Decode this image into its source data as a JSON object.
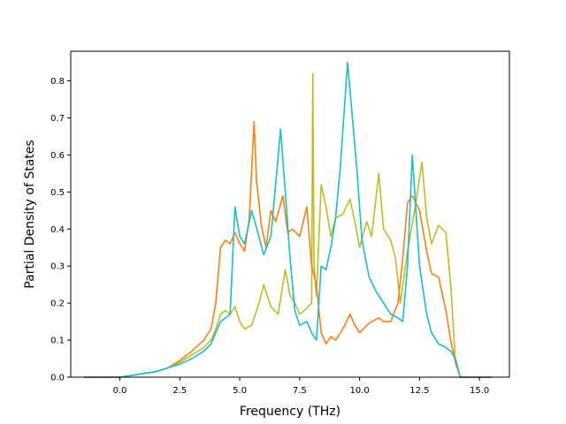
{
  "chart_data": {
    "type": "line",
    "title": "",
    "xlabel": "Frequency (THz)",
    "ylabel": "Partial Density of States",
    "xlim": [
      -2.05,
      16.25
    ],
    "ylim": [
      0.0,
      0.88
    ],
    "xticks": [
      0.0,
      2.5,
      5.0,
      7.5,
      10.0,
      12.5,
      15.0
    ],
    "xtick_labels": [
      "0.0",
      "2.5",
      "5.0",
      "7.5",
      "10.0",
      "12.5",
      "15.0"
    ],
    "yticks": [
      0.0,
      0.1,
      0.2,
      0.3,
      0.4,
      0.5,
      0.6,
      0.7,
      0.8
    ],
    "ytick_labels": [
      "0.0",
      "0.1",
      "0.2",
      "0.3",
      "0.4",
      "0.5",
      "0.6",
      "0.7",
      "0.8"
    ],
    "grid": false,
    "legend": "none",
    "series": [
      {
        "color": "#bcbd22",
        "x": [
          -1.5,
          0.0,
          0.5,
          1.0,
          1.5,
          2.0,
          2.5,
          3.0,
          3.5,
          3.8,
          4.0,
          4.2,
          4.4,
          4.6,
          4.8,
          5.0,
          5.2,
          5.5,
          5.8,
          6.0,
          6.3,
          6.6,
          6.9,
          7.1,
          7.3,
          7.5,
          7.7,
          8.0,
          8.05,
          8.1,
          8.2,
          8.4,
          8.6,
          8.8,
          9.0,
          9.3,
          9.6,
          9.8,
          10.0,
          10.3,
          10.5,
          10.8,
          11.0,
          11.3,
          11.5,
          11.7,
          12.0,
          12.3,
          12.6,
          12.8,
          13.0,
          13.3,
          13.6,
          13.8,
          14.0,
          14.2,
          14.5,
          15.5
        ],
        "y": [
          0.0,
          0.0,
          0.005,
          0.01,
          0.015,
          0.025,
          0.04,
          0.06,
          0.08,
          0.1,
          0.13,
          0.17,
          0.18,
          0.17,
          0.19,
          0.15,
          0.13,
          0.14,
          0.2,
          0.25,
          0.19,
          0.17,
          0.29,
          0.22,
          0.2,
          0.17,
          0.18,
          0.2,
          0.82,
          0.3,
          0.22,
          0.52,
          0.46,
          0.38,
          0.43,
          0.44,
          0.48,
          0.42,
          0.35,
          0.42,
          0.38,
          0.55,
          0.4,
          0.37,
          0.32,
          0.2,
          0.34,
          0.45,
          0.58,
          0.43,
          0.36,
          0.41,
          0.39,
          0.25,
          0.04,
          0.0,
          0.0,
          0.0
        ]
      },
      {
        "color": "#ff7f0e",
        "x": [
          -1.5,
          0.0,
          0.5,
          1.0,
          1.5,
          2.0,
          2.5,
          3.0,
          3.5,
          3.8,
          4.0,
          4.2,
          4.4,
          4.6,
          4.8,
          5.0,
          5.2,
          5.4,
          5.6,
          5.7,
          5.9,
          6.1,
          6.3,
          6.5,
          6.8,
          7.0,
          7.2,
          7.5,
          7.8,
          8.0,
          8.2,
          8.4,
          8.6,
          8.8,
          9.0,
          9.3,
          9.6,
          9.8,
          10.0,
          10.3,
          10.5,
          10.8,
          11.0,
          11.3,
          11.6,
          11.8,
          12.0,
          12.2,
          12.5,
          12.8,
          13.0,
          13.3,
          13.6,
          13.8,
          14.0,
          14.2,
          14.5,
          15.5
        ],
        "y": [
          0.0,
          0.0,
          0.005,
          0.01,
          0.015,
          0.025,
          0.045,
          0.07,
          0.1,
          0.13,
          0.2,
          0.35,
          0.37,
          0.36,
          0.39,
          0.36,
          0.34,
          0.43,
          0.69,
          0.53,
          0.41,
          0.35,
          0.45,
          0.42,
          0.49,
          0.39,
          0.4,
          0.38,
          0.46,
          0.3,
          0.25,
          0.12,
          0.09,
          0.11,
          0.1,
          0.13,
          0.17,
          0.14,
          0.12,
          0.14,
          0.15,
          0.16,
          0.15,
          0.15,
          0.2,
          0.32,
          0.47,
          0.49,
          0.45,
          0.34,
          0.28,
          0.27,
          0.18,
          0.1,
          0.04,
          0.0,
          0.0,
          0.0
        ]
      },
      {
        "color": "#17becf",
        "x": [
          -1.5,
          0.0,
          0.5,
          1.0,
          1.5,
          2.0,
          2.5,
          3.0,
          3.5,
          3.8,
          4.0,
          4.2,
          4.4,
          4.6,
          4.8,
          5.0,
          5.2,
          5.5,
          5.8,
          6.0,
          6.3,
          6.5,
          6.7,
          6.9,
          7.1,
          7.3,
          7.5,
          7.8,
          8.0,
          8.2,
          8.4,
          8.6,
          8.8,
          9.0,
          9.2,
          9.5,
          9.7,
          9.9,
          10.1,
          10.4,
          10.7,
          11.0,
          11.3,
          11.6,
          11.8,
          12.0,
          12.2,
          12.5,
          12.8,
          13.0,
          13.3,
          13.6,
          13.8,
          14.0,
          14.2,
          14.5,
          15.5
        ],
        "y": [
          0.0,
          0.0,
          0.005,
          0.01,
          0.015,
          0.025,
          0.035,
          0.05,
          0.07,
          0.09,
          0.12,
          0.15,
          0.16,
          0.17,
          0.46,
          0.38,
          0.36,
          0.45,
          0.38,
          0.33,
          0.38,
          0.52,
          0.67,
          0.5,
          0.32,
          0.18,
          0.14,
          0.15,
          0.12,
          0.1,
          0.3,
          0.29,
          0.35,
          0.43,
          0.57,
          0.85,
          0.7,
          0.55,
          0.37,
          0.27,
          0.23,
          0.2,
          0.17,
          0.16,
          0.15,
          0.3,
          0.6,
          0.3,
          0.17,
          0.12,
          0.09,
          0.08,
          0.07,
          0.05,
          0.0,
          0.0,
          0.0
        ]
      }
    ]
  }
}
